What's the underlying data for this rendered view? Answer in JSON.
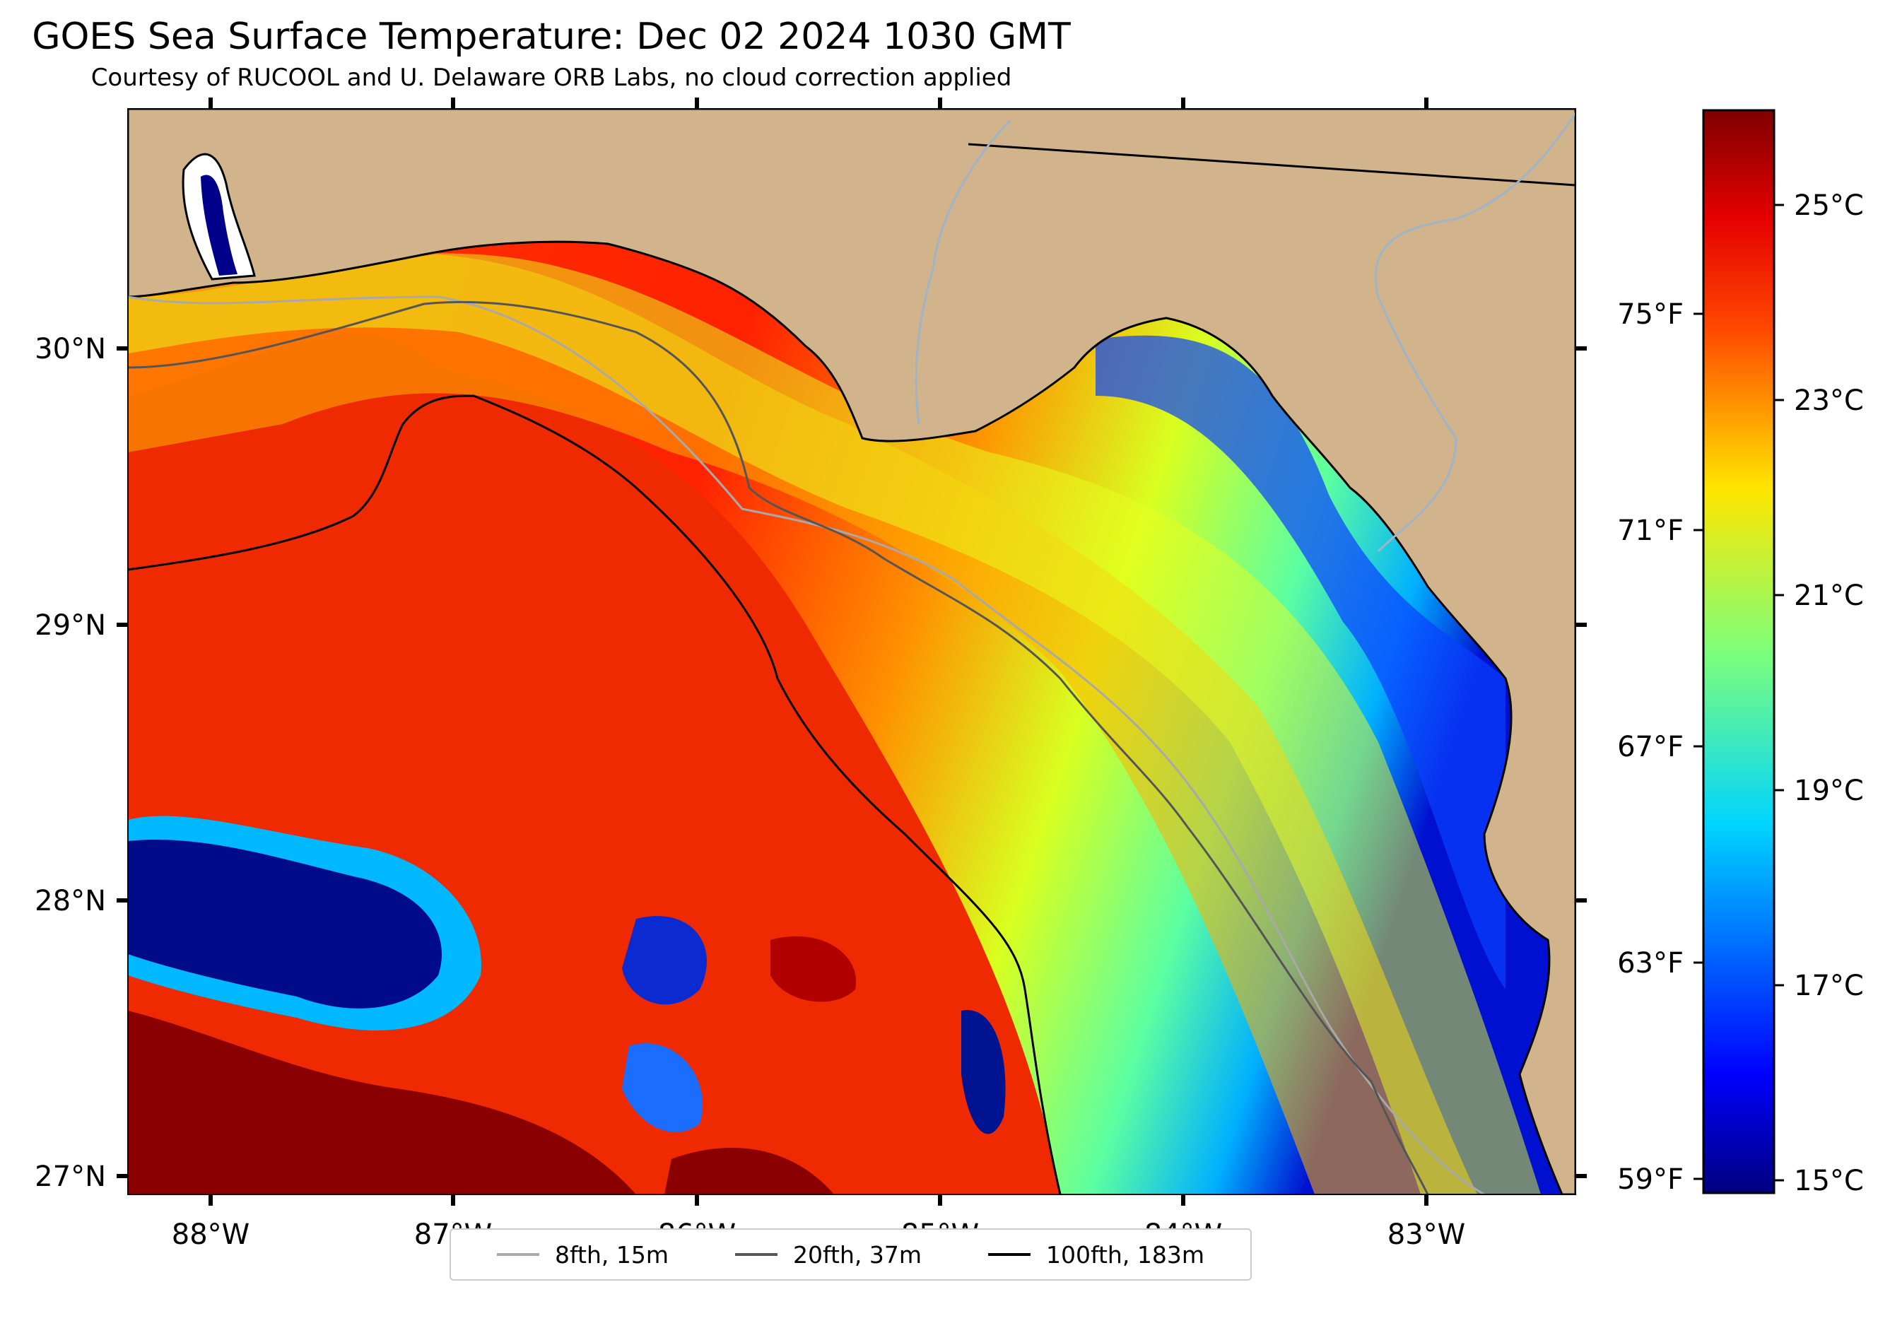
{
  "title": "GOES Sea Surface Temperature: Dec 02 2024 1030 GMT",
  "subtitle": "Courtesy of RUCOOL and U. Delaware ORB Labs, no cloud correction applied",
  "map": {
    "lon_ticks": [
      "88°W",
      "87°W",
      "86°W",
      "85°W",
      "84°W",
      "83°W"
    ],
    "lat_ticks": [
      "30°N",
      "29°N",
      "28°N",
      "27°N"
    ],
    "extent": {
      "lon": [
        -88.33,
        -82.38
      ],
      "lat": [
        26.93,
        30.87
      ]
    },
    "land_color": "#d2b48c"
  },
  "colorbar": {
    "celsius_ticks": [
      "25°C",
      "23°C",
      "21°C",
      "19°C",
      "17°C",
      "15°C"
    ],
    "fahrenheit_ticks": [
      "75°F",
      "71°F",
      "67°F",
      "63°F",
      "59°F"
    ],
    "range_c": [
      14.9,
      26.2
    ],
    "colormap": "jet"
  },
  "legend": [
    {
      "label": "8fth, 15m",
      "color": "#a9a9a9"
    },
    {
      "label": "20fth, 37m",
      "color": "#555555"
    },
    {
      "label": "100fth, 183m",
      "color": "#000000"
    }
  ]
}
